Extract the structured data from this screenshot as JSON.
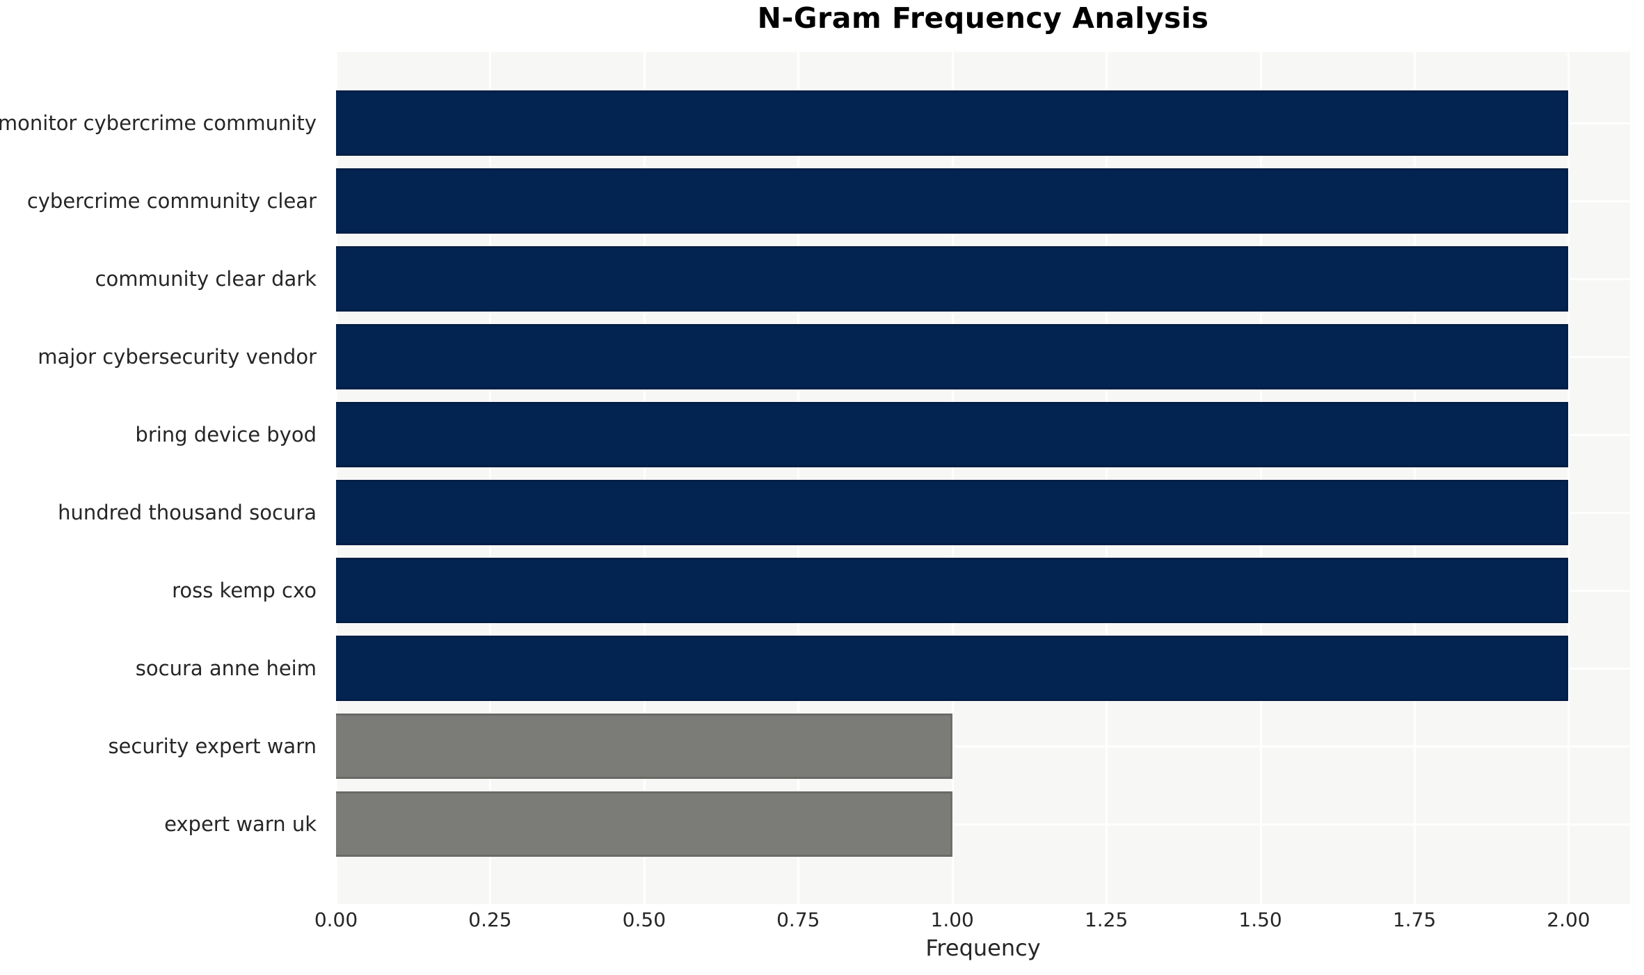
{
  "chart_data": {
    "type": "bar",
    "orientation": "horizontal",
    "title": "N-Gram Frequency Analysis",
    "xlabel": "Frequency",
    "ylabel": "",
    "categories": [
      "monitor cybercrime community",
      "cybercrime community clear",
      "community clear dark",
      "major cybersecurity vendor",
      "bring device byod",
      "hundred thousand socura",
      "ross kemp cxo",
      "socura anne heim",
      "security expert warn",
      "expert warn uk"
    ],
    "values": [
      2,
      2,
      2,
      2,
      2,
      2,
      2,
      2,
      1,
      1
    ],
    "bar_colors": [
      "#032451",
      "#032451",
      "#032451",
      "#032451",
      "#032451",
      "#032451",
      "#032451",
      "#032451",
      "#7b7b78",
      "#7b7b78"
    ],
    "xlim": [
      0,
      2.1
    ],
    "xticks": [
      {
        "value": 0.0,
        "label": "0.00"
      },
      {
        "value": 0.25,
        "label": "0.25"
      },
      {
        "value": 0.5,
        "label": "0.50"
      },
      {
        "value": 0.75,
        "label": "0.75"
      },
      {
        "value": 1.0,
        "label": "1.00"
      },
      {
        "value": 1.25,
        "label": "1.25"
      },
      {
        "value": 1.5,
        "label": "1.50"
      },
      {
        "value": 1.75,
        "label": "1.75"
      },
      {
        "value": 2.0,
        "label": "2.00"
      }
    ],
    "grid": "on",
    "legend": "none",
    "colors": {
      "high_frequency_bar": "#032451",
      "low_frequency_bar": "#7b7b78",
      "plot_background": "#f7f7f6",
      "gridline": "#ffffff",
      "tick_text": "#262626",
      "title_text": "#000000"
    }
  }
}
